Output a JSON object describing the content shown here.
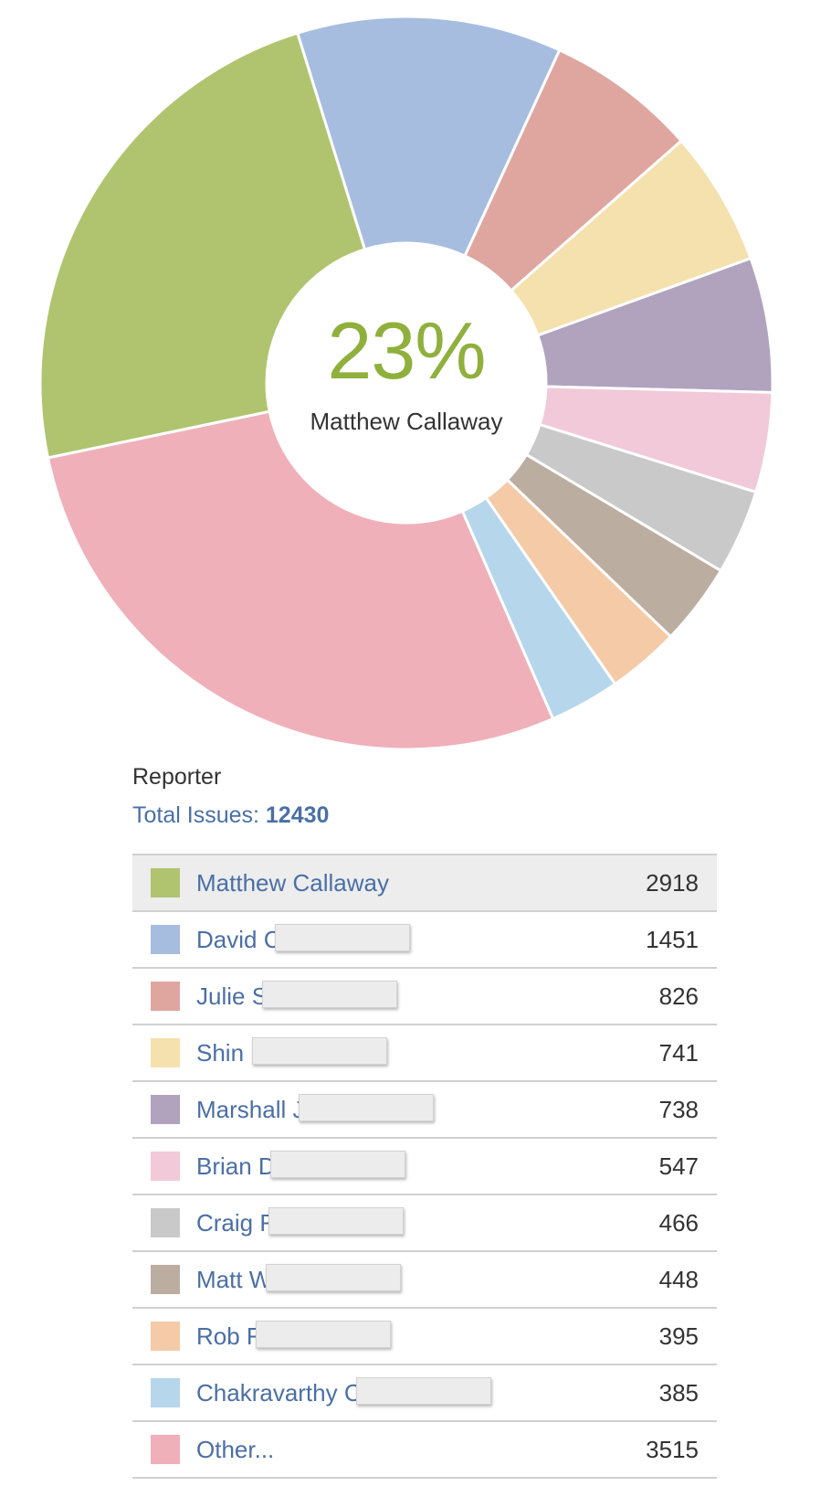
{
  "chart_data": {
    "type": "pie",
    "title": "Reporter",
    "total_label": "Total Issues:",
    "total_value": "12430",
    "center_percent": "23%",
    "center_label": "Matthew Callaway",
    "slices": [
      {
        "name": "Matthew Callaway",
        "value": 2918,
        "color": "#b0c46f"
      },
      {
        "name": "David C",
        "value": 1451,
        "color": "#a6bde0"
      },
      {
        "name": "Julie S",
        "value": 826,
        "color": "#dfa6a0"
      },
      {
        "name": "Shin I",
        "value": 741,
        "color": "#f5e1ad"
      },
      {
        "name": "Marshall J",
        "value": 738,
        "color": "#b1a2bd"
      },
      {
        "name": "Brian D",
        "value": 547,
        "color": "#f2c9d8"
      },
      {
        "name": "Craig F",
        "value": 466,
        "color": "#c9c9c9"
      },
      {
        "name": "Matt W",
        "value": 448,
        "color": "#bcada1"
      },
      {
        "name": "Rob F",
        "value": 395,
        "color": "#f5caa6"
      },
      {
        "name": "Chakravarthy C",
        "value": 385,
        "color": "#b6d6ec"
      },
      {
        "name": "Other...",
        "value": 3515,
        "color": "#efb0b9"
      }
    ]
  },
  "colors": {
    "link": "#4a6fa5",
    "center_percent": "#8fb03c",
    "row_highlight": "#ededed"
  }
}
